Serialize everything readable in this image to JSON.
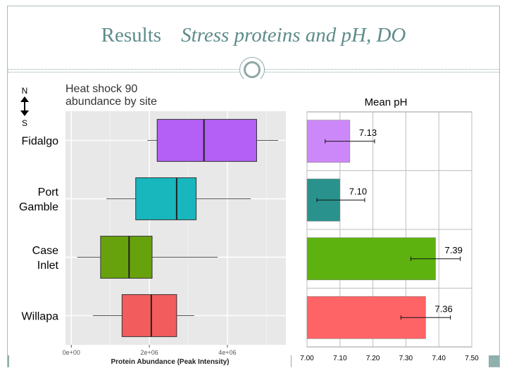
{
  "slide": {
    "title": "Results",
    "subtitle": "Stress proteins and pH, DO"
  },
  "compass": {
    "north": "N",
    "south": "S"
  },
  "chart_data": [
    {
      "type": "boxplot",
      "title_lines": [
        "Heat shock 90",
        "abundance by site"
      ],
      "xlabel": "Protein Abundance (Peak Intensity)",
      "ylabel": "",
      "x_ticks": [
        "0e+00",
        "2e+06",
        "4e+06"
      ],
      "x_tick_values": [
        0,
        2000000,
        4000000
      ],
      "xlim": [
        -150000,
        5500000
      ],
      "grid": true,
      "categories": [
        {
          "label_lines": [
            "Fidalgo"
          ],
          "color": "#b45ff5",
          "whisker_low": 1950000,
          "q1": 2200000,
          "median": 3400000,
          "q3": 4750000,
          "whisker_high": 5300000
        },
        {
          "label_lines": [
            "Port",
            "Gamble"
          ],
          "color": "#17b7bd",
          "whisker_low": 900000,
          "q1": 1650000,
          "median": 2700000,
          "q3": 3200000,
          "whisker_high": 4600000
        },
        {
          "label_lines": [
            "Case",
            "Inlet"
          ],
          "color": "#67a20c",
          "whisker_low": 150000,
          "q1": 750000,
          "median": 1480000,
          "q3": 2070000,
          "whisker_high": 3750000
        },
        {
          "label_lines": [
            "Willapa"
          ],
          "color": "#f25c5c",
          "whisker_low": 550000,
          "q1": 1300000,
          "median": 2050000,
          "q3": 2700000,
          "whisker_high": 3150000
        }
      ]
    },
    {
      "type": "bar",
      "orientation": "horizontal",
      "title": "Mean pH",
      "xlim": [
        7.0,
        7.5
      ],
      "x_ticks": [
        "7.00",
        "7.10",
        "7.20",
        "7.30",
        "7.40",
        "7.50"
      ],
      "x_tick_values": [
        7.0,
        7.1,
        7.2,
        7.3,
        7.4,
        7.5
      ],
      "grid": true,
      "values": [
        7.13,
        7.1,
        7.39,
        7.36
      ],
      "labels": [
        "7.13",
        "7.10",
        "7.39",
        "7.36"
      ],
      "colors": [
        "#cc88f8",
        "#2a928c",
        "#5db20f",
        "#fe6466"
      ],
      "error": [
        {
          "low": 7.055,
          "high": 7.205
        },
        {
          "low": 7.03,
          "high": 7.175
        },
        {
          "low": 7.315,
          "high": 7.465
        },
        {
          "low": 7.285,
          "high": 7.435
        }
      ]
    }
  ]
}
